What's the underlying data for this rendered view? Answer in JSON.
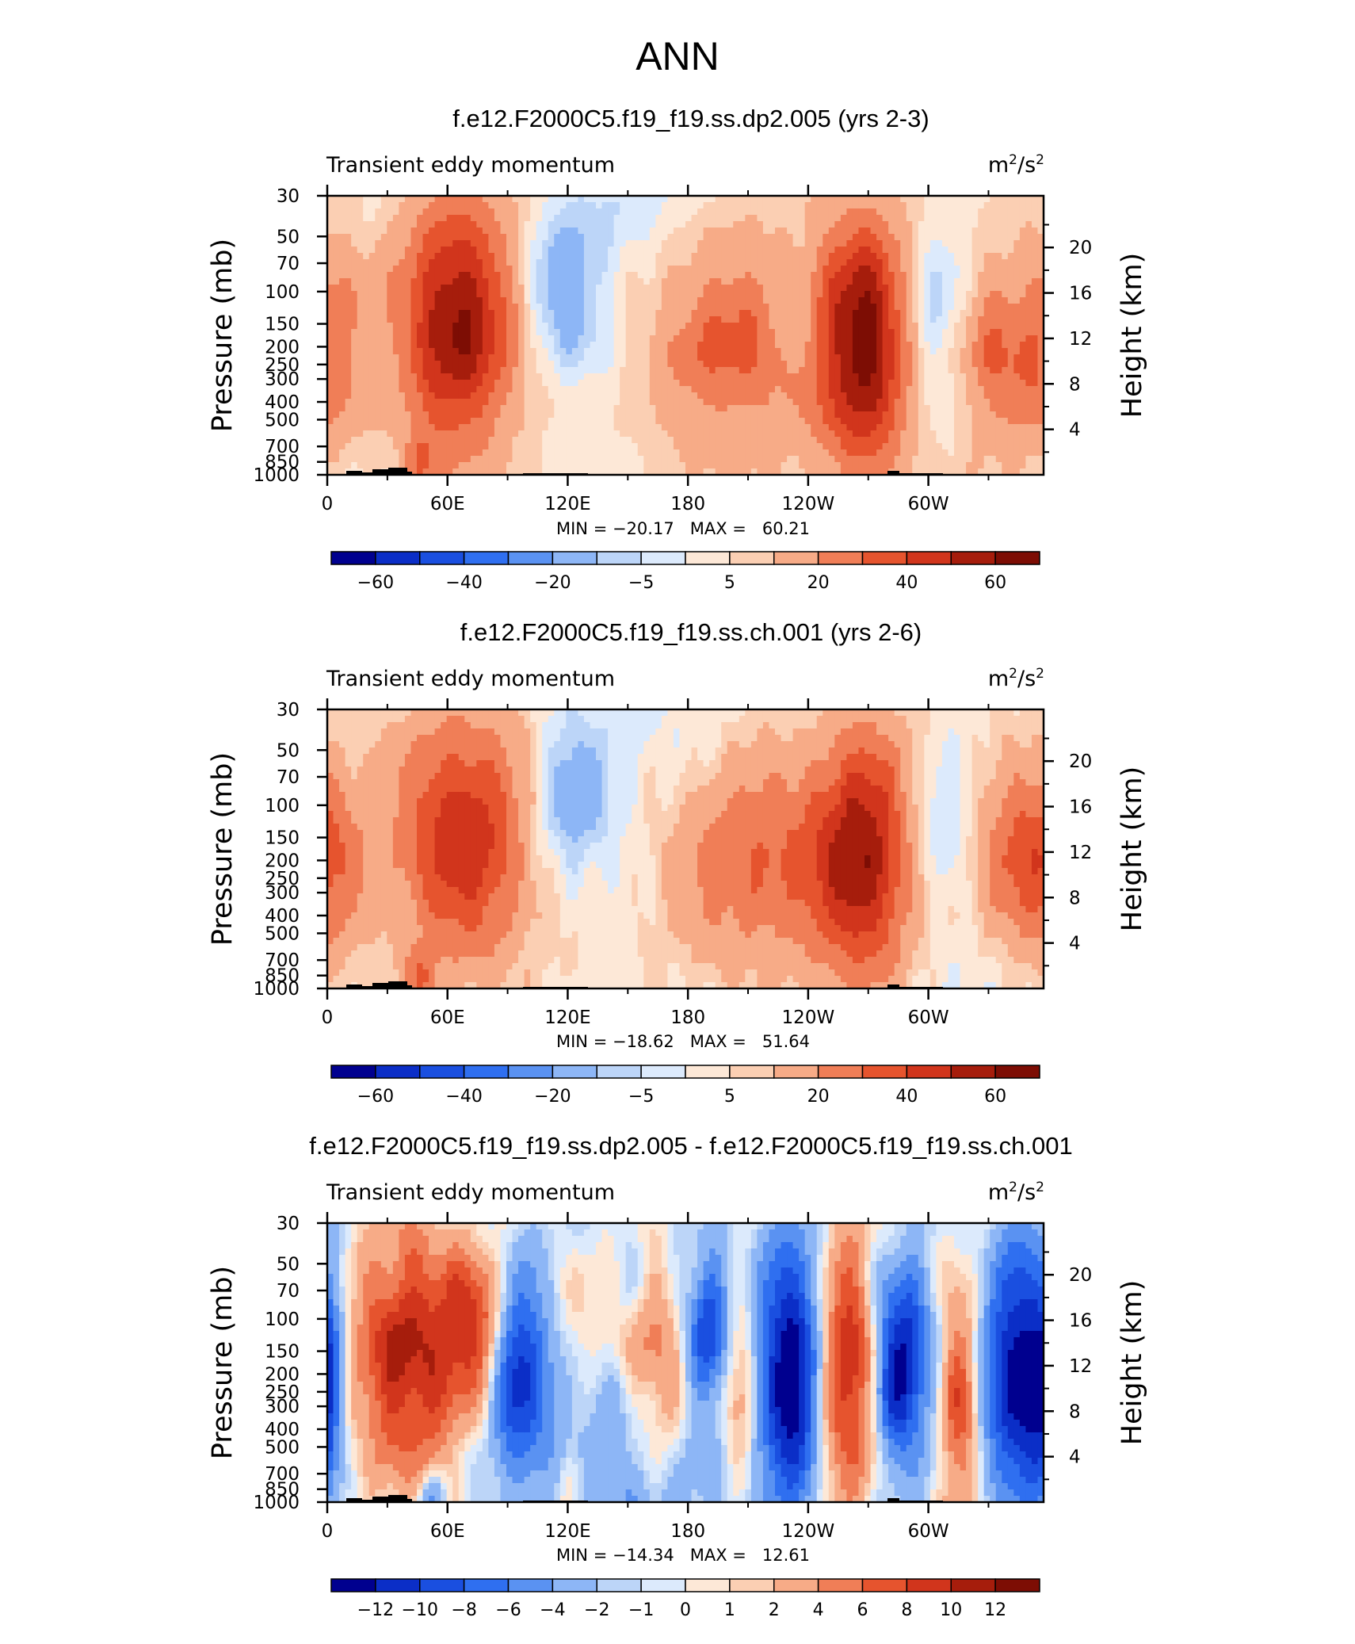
{
  "figure_title": "ANN",
  "colors": {
    "main": [
      "#00008f",
      "#0b2ec7",
      "#1a4fe0",
      "#2f6ff0",
      "#5a92f2",
      "#8db6f6",
      "#bcd5f8",
      "#dceafc",
      "#fde8d7",
      "#fbcfb3",
      "#f7ab87",
      "#f07e57",
      "#e6542e",
      "#d1351c",
      "#a61d0c",
      "#7d0d04"
    ],
    "diff": [
      "#00008f",
      "#0b2ec7",
      "#1a4fe0",
      "#2f6ff0",
      "#5a92f2",
      "#8db6f6",
      "#bcd5f8",
      "#dceafc",
      "#fde8d7",
      "#fbcfb3",
      "#f7ab87",
      "#f07e57",
      "#e6542e",
      "#d1351c",
      "#a61d0c",
      "#7d0d04"
    ]
  },
  "chart_data": [
    {
      "type": "heatmap",
      "title": "f.e12.F2000C5.f19_f19.ss.dp2.005 (yrs 2-3)",
      "left_label": "Transient eddy momentum",
      "units_base": "m",
      "units_exp1": "2",
      "units_sep": "/s",
      "units_exp2": "2",
      "ylabel": "Pressure  (mb)",
      "y2label": "Height  (km)",
      "x_ticks": [
        "0",
        "60E",
        "120E",
        "180",
        "120W",
        "60W"
      ],
      "x_tick_values": [
        0,
        60,
        120,
        180,
        240,
        300
      ],
      "xlim": [
        0,
        357.5
      ],
      "y_ticks": [
        "30",
        "50",
        "70",
        "100",
        "150",
        "200",
        "250",
        "300",
        "400",
        "500",
        "700",
        "850",
        "1000"
      ],
      "y_tick_values": [
        30,
        50,
        70,
        100,
        150,
        200,
        250,
        300,
        400,
        500,
        700,
        850,
        1000
      ],
      "y2_ticks": [
        "20",
        "16",
        "12",
        "8",
        "4"
      ],
      "y2_tick_values": [
        20,
        16,
        12,
        8,
        4
      ],
      "ylim": [
        1000,
        30
      ],
      "stats": "MIN = −20.17   MAX =   60.21",
      "colorbar_labels": [
        "−60",
        "−40",
        "−20",
        "−5",
        "5",
        "20",
        "40",
        "60"
      ],
      "levels": [
        -70,
        -60,
        -50,
        -40,
        -30,
        -20,
        -10,
        -5,
        0,
        5,
        10,
        20,
        30,
        40,
        50,
        60,
        70
      ],
      "features": [
        {
          "lon": 0,
          "p": 190,
          "amp": 22,
          "wl": 14,
          "wp": 0.17
        },
        {
          "lon": 65,
          "p": 150,
          "amp": 58,
          "wl": 20,
          "wp": 0.2
        },
        {
          "lon": 118,
          "p": 100,
          "amp": -20,
          "wl": 13,
          "wp": 0.12
        },
        {
          "lon": 200,
          "p": 190,
          "amp": 28,
          "wl": 28,
          "wp": 0.16
        },
        {
          "lon": 232,
          "p": 145,
          "amp": -10,
          "wl": 8,
          "wp": 0.1
        },
        {
          "lon": 268,
          "p": 190,
          "amp": 60,
          "wl": 16,
          "wp": 0.2
        },
        {
          "lon": 305,
          "p": 150,
          "amp": -17,
          "wl": 15,
          "wp": 0.16
        },
        {
          "lon": 333,
          "p": 210,
          "amp": 28,
          "wl": 15,
          "wp": 0.14
        },
        {
          "lon": 345,
          "p": 140,
          "amp": -8,
          "wl": 9,
          "wp": 0.1
        },
        {
          "lon": 47,
          "p": 900,
          "amp": 20,
          "wl": 6,
          "wp": 0.05
        },
        {
          "lon": 150,
          "p": 40,
          "amp": -6,
          "wl": 35,
          "wp": 0.25
        },
        {
          "lon": 250,
          "p": 450,
          "amp": 3,
          "wl": 60,
          "wp": 0.5
        }
      ],
      "base": 3,
      "noise_amp": 5,
      "seed": 11
    },
    {
      "type": "heatmap",
      "title": "f.e12.F2000C5.f19_f19.ss.ch.001 (yrs 2-6)",
      "left_label": "Transient eddy momentum",
      "units_base": "m",
      "units_exp1": "2",
      "units_sep": "/s",
      "units_exp2": "2",
      "ylabel": "Pressure  (mb)",
      "y2label": "Height  (km)",
      "x_ticks": [
        "0",
        "60E",
        "120E",
        "180",
        "120W",
        "60W"
      ],
      "x_tick_values": [
        0,
        60,
        120,
        180,
        240,
        300
      ],
      "xlim": [
        0,
        357.5
      ],
      "y_ticks": [
        "30",
        "50",
        "70",
        "100",
        "150",
        "200",
        "250",
        "300",
        "400",
        "500",
        "700",
        "850",
        "1000"
      ],
      "y_tick_values": [
        30,
        50,
        70,
        100,
        150,
        200,
        250,
        300,
        400,
        500,
        700,
        850,
        1000
      ],
      "y2_ticks": [
        "20",
        "16",
        "12",
        "8",
        "4"
      ],
      "y2_tick_values": [
        20,
        16,
        12,
        8,
        4
      ],
      "ylim": [
        1000,
        30
      ],
      "stats": "MIN = −18.62   MAX =   51.64",
      "colorbar_labels": [
        "−60",
        "−40",
        "−20",
        "−5",
        "5",
        "20",
        "40",
        "60"
      ],
      "levels": [
        -70,
        -60,
        -50,
        -40,
        -30,
        -20,
        -10,
        -5,
        0,
        5,
        10,
        20,
        30,
        40,
        50,
        60,
        70
      ],
      "features": [
        {
          "lon": 0,
          "p": 190,
          "amp": 24,
          "wl": 14,
          "wp": 0.17
        },
        {
          "lon": 68,
          "p": 150,
          "amp": 45,
          "wl": 24,
          "wp": 0.2
        },
        {
          "lon": 120,
          "p": 100,
          "amp": -18,
          "wl": 14,
          "wp": 0.12
        },
        {
          "lon": 215,
          "p": 200,
          "amp": 28,
          "wl": 32,
          "wp": 0.17
        },
        {
          "lon": 268,
          "p": 190,
          "amp": 50,
          "wl": 17,
          "wp": 0.2
        },
        {
          "lon": 308,
          "p": 150,
          "amp": -13,
          "wl": 14,
          "wp": 0.12
        },
        {
          "lon": 338,
          "p": 220,
          "amp": 25,
          "wl": 16,
          "wp": 0.14
        },
        {
          "lon": 47,
          "p": 900,
          "amp": 20,
          "wl": 6,
          "wp": 0.05
        },
        {
          "lon": 150,
          "p": 40,
          "amp": -6,
          "wl": 35,
          "wp": 0.25
        },
        {
          "lon": 330,
          "p": 600,
          "amp": -6,
          "wl": 20,
          "wp": 0.2
        }
      ],
      "base": 3,
      "noise_amp": 4,
      "seed": 23
    },
    {
      "type": "heatmap",
      "title": "f.e12.F2000C5.f19_f19.ss.dp2.005 - f.e12.F2000C5.f19_f19.ss.ch.001",
      "left_label": "Transient eddy momentum",
      "units_base": "m",
      "units_exp1": "2",
      "units_sep": "/s",
      "units_exp2": "2",
      "ylabel": "Pressure  (mb)",
      "y2label": "Height  (km)",
      "x_ticks": [
        "0",
        "60E",
        "120E",
        "180",
        "120W",
        "60W"
      ],
      "x_tick_values": [
        0,
        60,
        120,
        180,
        240,
        300
      ],
      "xlim": [
        0,
        357.5
      ],
      "y_ticks": [
        "30",
        "50",
        "70",
        "100",
        "150",
        "200",
        "250",
        "300",
        "400",
        "500",
        "700",
        "850",
        "1000"
      ],
      "y_tick_values": [
        30,
        50,
        70,
        100,
        150,
        200,
        250,
        300,
        400,
        500,
        700,
        850,
        1000
      ],
      "y2_ticks": [
        "20",
        "16",
        "12",
        "8",
        "4"
      ],
      "y2_tick_values": [
        20,
        16,
        12,
        8,
        4
      ],
      "ylim": [
        1000,
        30
      ],
      "stats": "MIN = −14.34   MAX =   12.61",
      "colorbar_labels": [
        "−12",
        "−10",
        "−8",
        "−6",
        "−4",
        "−2",
        "−1",
        "0",
        "1",
        "2",
        "4",
        "6",
        "8",
        "10",
        "12"
      ],
      "levels": [
        -14,
        -12,
        -10,
        -8,
        -6,
        -4,
        -2,
        -1,
        0,
        1,
        2,
        4,
        6,
        8,
        10,
        12,
        14
      ],
      "features": [
        {
          "lon": 0,
          "p": 220,
          "amp": -7,
          "wl": 6,
          "wp": 0.18
        },
        {
          "lon": 40,
          "p": 160,
          "amp": 11,
          "wl": 20,
          "wp": 0.2
        },
        {
          "lon": 75,
          "p": 110,
          "amp": 9,
          "wl": 12,
          "wp": 0.12
        },
        {
          "lon": 95,
          "p": 180,
          "amp": -11,
          "wl": 11,
          "wp": 0.16
        },
        {
          "lon": 165,
          "p": 180,
          "amp": 7,
          "wl": 10,
          "wp": 0.15
        },
        {
          "lon": 190,
          "p": 110,
          "amp": -8,
          "wl": 7,
          "wp": 0.12
        },
        {
          "lon": 207,
          "p": 250,
          "amp": 6,
          "wl": 6,
          "wp": 0.14
        },
        {
          "lon": 232,
          "p": 200,
          "amp": -14,
          "wl": 12,
          "wp": 0.22
        },
        {
          "lon": 260,
          "p": 190,
          "amp": 12,
          "wl": 12,
          "wp": 0.22
        },
        {
          "lon": 285,
          "p": 180,
          "amp": -13,
          "wl": 11,
          "wp": 0.17
        },
        {
          "lon": 315,
          "p": 280,
          "amp": 8,
          "wl": 7,
          "wp": 0.2
        },
        {
          "lon": 345,
          "p": 200,
          "amp": -13,
          "wl": 12,
          "wp": 0.22
        },
        {
          "lon": 130,
          "p": 100,
          "amp": 3,
          "wl": 15,
          "wp": 0.12
        },
        {
          "lon": 120,
          "p": 800,
          "amp": 3,
          "wl": 5,
          "wp": 0.08
        },
        {
          "lon": 52,
          "p": 920,
          "amp": -5,
          "wl": 5,
          "wp": 0.04
        },
        {
          "lon": 150,
          "p": 600,
          "amp": -3,
          "wl": 40,
          "wp": 0.3
        }
      ],
      "base": -0.5,
      "noise_amp": 1.6,
      "seed": 37
    }
  ]
}
